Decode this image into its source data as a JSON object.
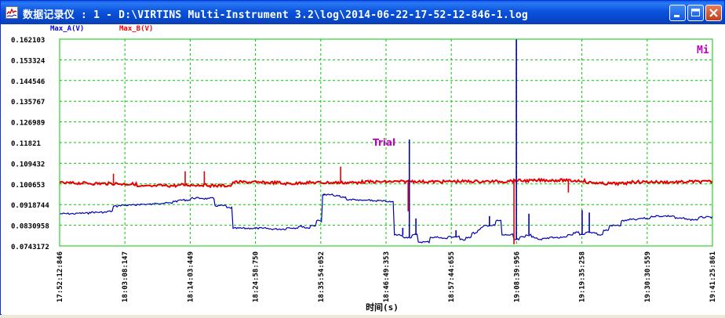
{
  "window": {
    "title": "数据记录仪 : 1 - D:\\VIRTINS Multi-Instrument 3.2\\log\\2014-06-22-17-52-12-846-1.log",
    "minimize_icon": "minimize-icon",
    "maximize_icon": "maximize-icon",
    "close_icon": "close-icon"
  },
  "legend": {
    "series_a": "Max_A(V)",
    "series_b": "Max_B(V)"
  },
  "corner_label": "Mi",
  "watermark": "Trial",
  "colors": {
    "series_a": "#0000b4",
    "series_b": "#e60000",
    "grid": "#00c800",
    "legend_a": "#0000ff",
    "legend_b": "#ff0000",
    "watermark": "#c000c0"
  },
  "chart_data": {
    "type": "line",
    "xlabel": "时间(s)",
    "ylabel": "",
    "ylim": [
      0.0743172,
      0.162103
    ],
    "xlim": [
      "17:52:12:846",
      "19:41:25:861"
    ],
    "y_ticks": [
      "0.162103",
      "0.153324",
      "0.144546",
      "0.135767",
      "0.126989",
      "0.11821",
      "0.109432",
      "0.100653",
      "0.0918744",
      "0.0830958",
      "0.0743172"
    ],
    "x_ticks": [
      "17:52:12:846",
      "18:03:08:147",
      "18:14:03:449",
      "18:24:58:750",
      "18:35:54:052",
      "18:46:49:353",
      "18:57:44:655",
      "19:08:39:956",
      "19:19:35:258",
      "19:30:30:559",
      "19:41:25:861"
    ],
    "grid": true,
    "legend_position": "top-left",
    "series": [
      {
        "name": "Max_A(V)",
        "x_minutes": [
          0,
          3,
          5,
          8,
          9,
          10,
          13,
          16,
          19,
          20,
          22,
          24,
          25,
          26,
          28,
          29,
          32,
          34,
          35,
          38,
          40,
          41,
          42,
          43,
          44,
          46,
          47,
          48,
          50,
          51,
          52,
          54,
          55,
          56,
          57,
          57.5,
          58,
          59,
          60,
          61,
          62,
          64,
          65,
          67,
          68,
          69,
          70,
          70.5,
          71,
          72,
          73,
          74,
          75,
          76,
          77,
          78,
          79,
          80,
          81,
          82,
          83,
          84,
          85,
          86,
          87,
          88,
          90,
          91,
          92,
          93,
          94,
          95,
          97,
          99,
          101,
          103,
          105,
          107,
          109.2
        ],
        "values": [
          0.088,
          0.0882,
          0.0886,
          0.089,
          0.0912,
          0.0916,
          0.092,
          0.0925,
          0.0933,
          0.0938,
          0.0946,
          0.0944,
          0.0945,
          0.0914,
          0.0905,
          0.0818,
          0.0818,
          0.0818,
          0.0815,
          0.082,
          0.0826,
          0.082,
          0.083,
          0.085,
          0.096,
          0.0955,
          0.095,
          0.094,
          0.0936,
          0.0937,
          0.0935,
          0.0933,
          0.093,
          0.079,
          0.0788,
          0.078,
          0.078,
          0.079,
          0.076,
          0.076,
          0.078,
          0.0775,
          0.0782,
          0.077,
          0.078,
          0.0798,
          0.081,
          0.082,
          0.083,
          0.083,
          0.085,
          0.079,
          0.079,
          0.077,
          0.078,
          0.079,
          0.078,
          0.0772,
          0.0775,
          0.078,
          0.0778,
          0.0779,
          0.079,
          0.08,
          0.079,
          0.08,
          0.079,
          0.081,
          0.083,
          0.083,
          0.085,
          0.0855,
          0.086,
          0.087,
          0.087,
          0.086,
          0.0855,
          0.0865,
          0.087
        ]
      },
      {
        "name": "Max_B(V)",
        "x_minutes": [
          0,
          5,
          10,
          13,
          16,
          20,
          25,
          29,
          33,
          37,
          40,
          45,
          50,
          55,
          58,
          60,
          65,
          70,
          75,
          80,
          85,
          88,
          90,
          95,
          100,
          105,
          109.2
        ],
        "values": [
          0.101,
          0.1008,
          0.1006,
          0.0996,
          0.0999,
          0.1002,
          0.0999,
          0.1014,
          0.1012,
          0.1008,
          0.1012,
          0.1012,
          0.1015,
          0.1016,
          0.1018,
          0.1016,
          0.1017,
          0.1017,
          0.102,
          0.1022,
          0.102,
          0.1012,
          0.1008,
          0.1015,
          0.1014,
          0.1016,
          0.1018
        ]
      }
    ],
    "spikes": [
      {
        "series": "Max_A(V)",
        "x_minutes": 44.2,
        "value": 0.0965
      },
      {
        "series": "Max_A(V)",
        "x_minutes": 57.4,
        "value": 0.082
      },
      {
        "series": "Max_A(V)",
        "x_minutes": 58.5,
        "value": 0.1195
      },
      {
        "series": "Max_A(V)",
        "x_minutes": 59.6,
        "value": 0.086
      },
      {
        "series": "Max_A(V)",
        "x_minutes": 66.3,
        "value": 0.081
      },
      {
        "series": "Max_A(V)",
        "x_minutes": 71.9,
        "value": 0.087
      },
      {
        "series": "Max_A(V)",
        "x_minutes": 76.4,
        "value": 0.162
      },
      {
        "series": "Max_A(V)",
        "x_minutes": 78.5,
        "value": 0.088
      },
      {
        "series": "Max_A(V)",
        "x_minutes": 87.4,
        "value": 0.0895
      },
      {
        "series": "Max_A(V)",
        "x_minutes": 88.6,
        "value": 0.0885
      },
      {
        "series": "Max_B(V)",
        "x_minutes": 9.0,
        "value": 0.105
      },
      {
        "series": "Max_B(V)",
        "x_minutes": 21.0,
        "value": 0.106
      },
      {
        "series": "Max_B(V)",
        "x_minutes": 24.2,
        "value": 0.106
      },
      {
        "series": "Max_B(V)",
        "x_minutes": 47.0,
        "value": 0.108
      },
      {
        "series": "Max_B(V)",
        "x_minutes": 58.3,
        "value": 0.089
      },
      {
        "series": "Max_B(V)",
        "x_minutes": 76.0,
        "value": 0.075
      },
      {
        "series": "Max_B(V)",
        "x_minutes": 85.1,
        "value": 0.097
      }
    ]
  }
}
